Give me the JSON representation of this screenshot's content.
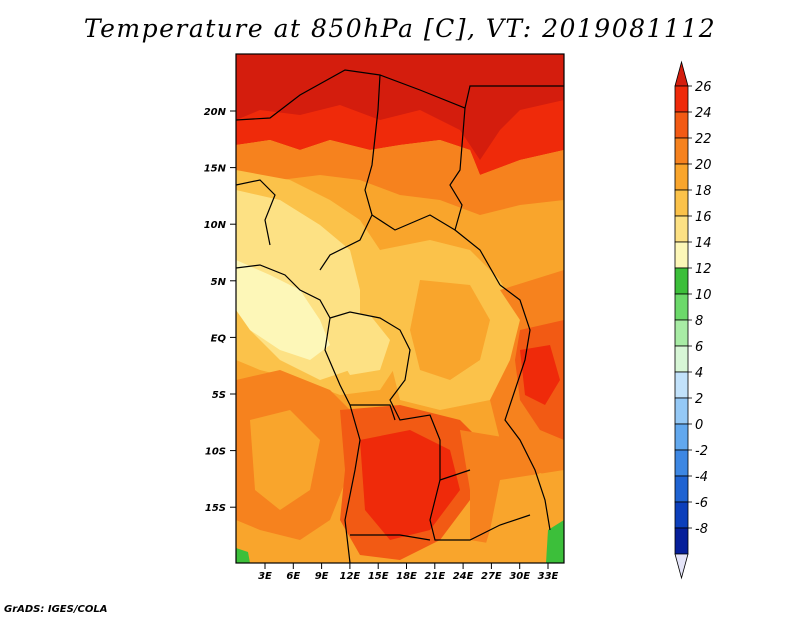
{
  "title": "Temperature at 850hPa [C], VT: 2019081112",
  "credit": "GrADS: IGES/COLA",
  "map": {
    "lat_labels": [
      "20N",
      "15N",
      "10N",
      "5N",
      "EQ",
      "5S",
      "10S",
      "15S"
    ],
    "lon_labels": [
      "3E",
      "6E",
      "9E",
      "12E",
      "15E",
      "18E",
      "21E",
      "24E",
      "27E",
      "30E",
      "33E"
    ]
  },
  "colorbar": {
    "labels": [
      "26",
      "24",
      "22",
      "20",
      "18",
      "16",
      "14",
      "12",
      "10",
      "8",
      "6",
      "4",
      "2",
      "0",
      "-2",
      "-4",
      "-6",
      "-8"
    ],
    "colors": [
      "#ef2a0a",
      "#f25a14",
      "#f6821e",
      "#f9a52c",
      "#fbc24a",
      "#fde184",
      "#fdf7b8",
      "#3cbf3a",
      "#6cd96a",
      "#a8eca5",
      "#d7f6d6",
      "#c2e2fb",
      "#95c9f6",
      "#62a8ee",
      "#3d87e3",
      "#1f63d2",
      "#0c3fbb",
      "#061f9a",
      "#051369"
    ],
    "top_color": "#d41d0d",
    "bottom_color": "#e4e4f8"
  }
}
